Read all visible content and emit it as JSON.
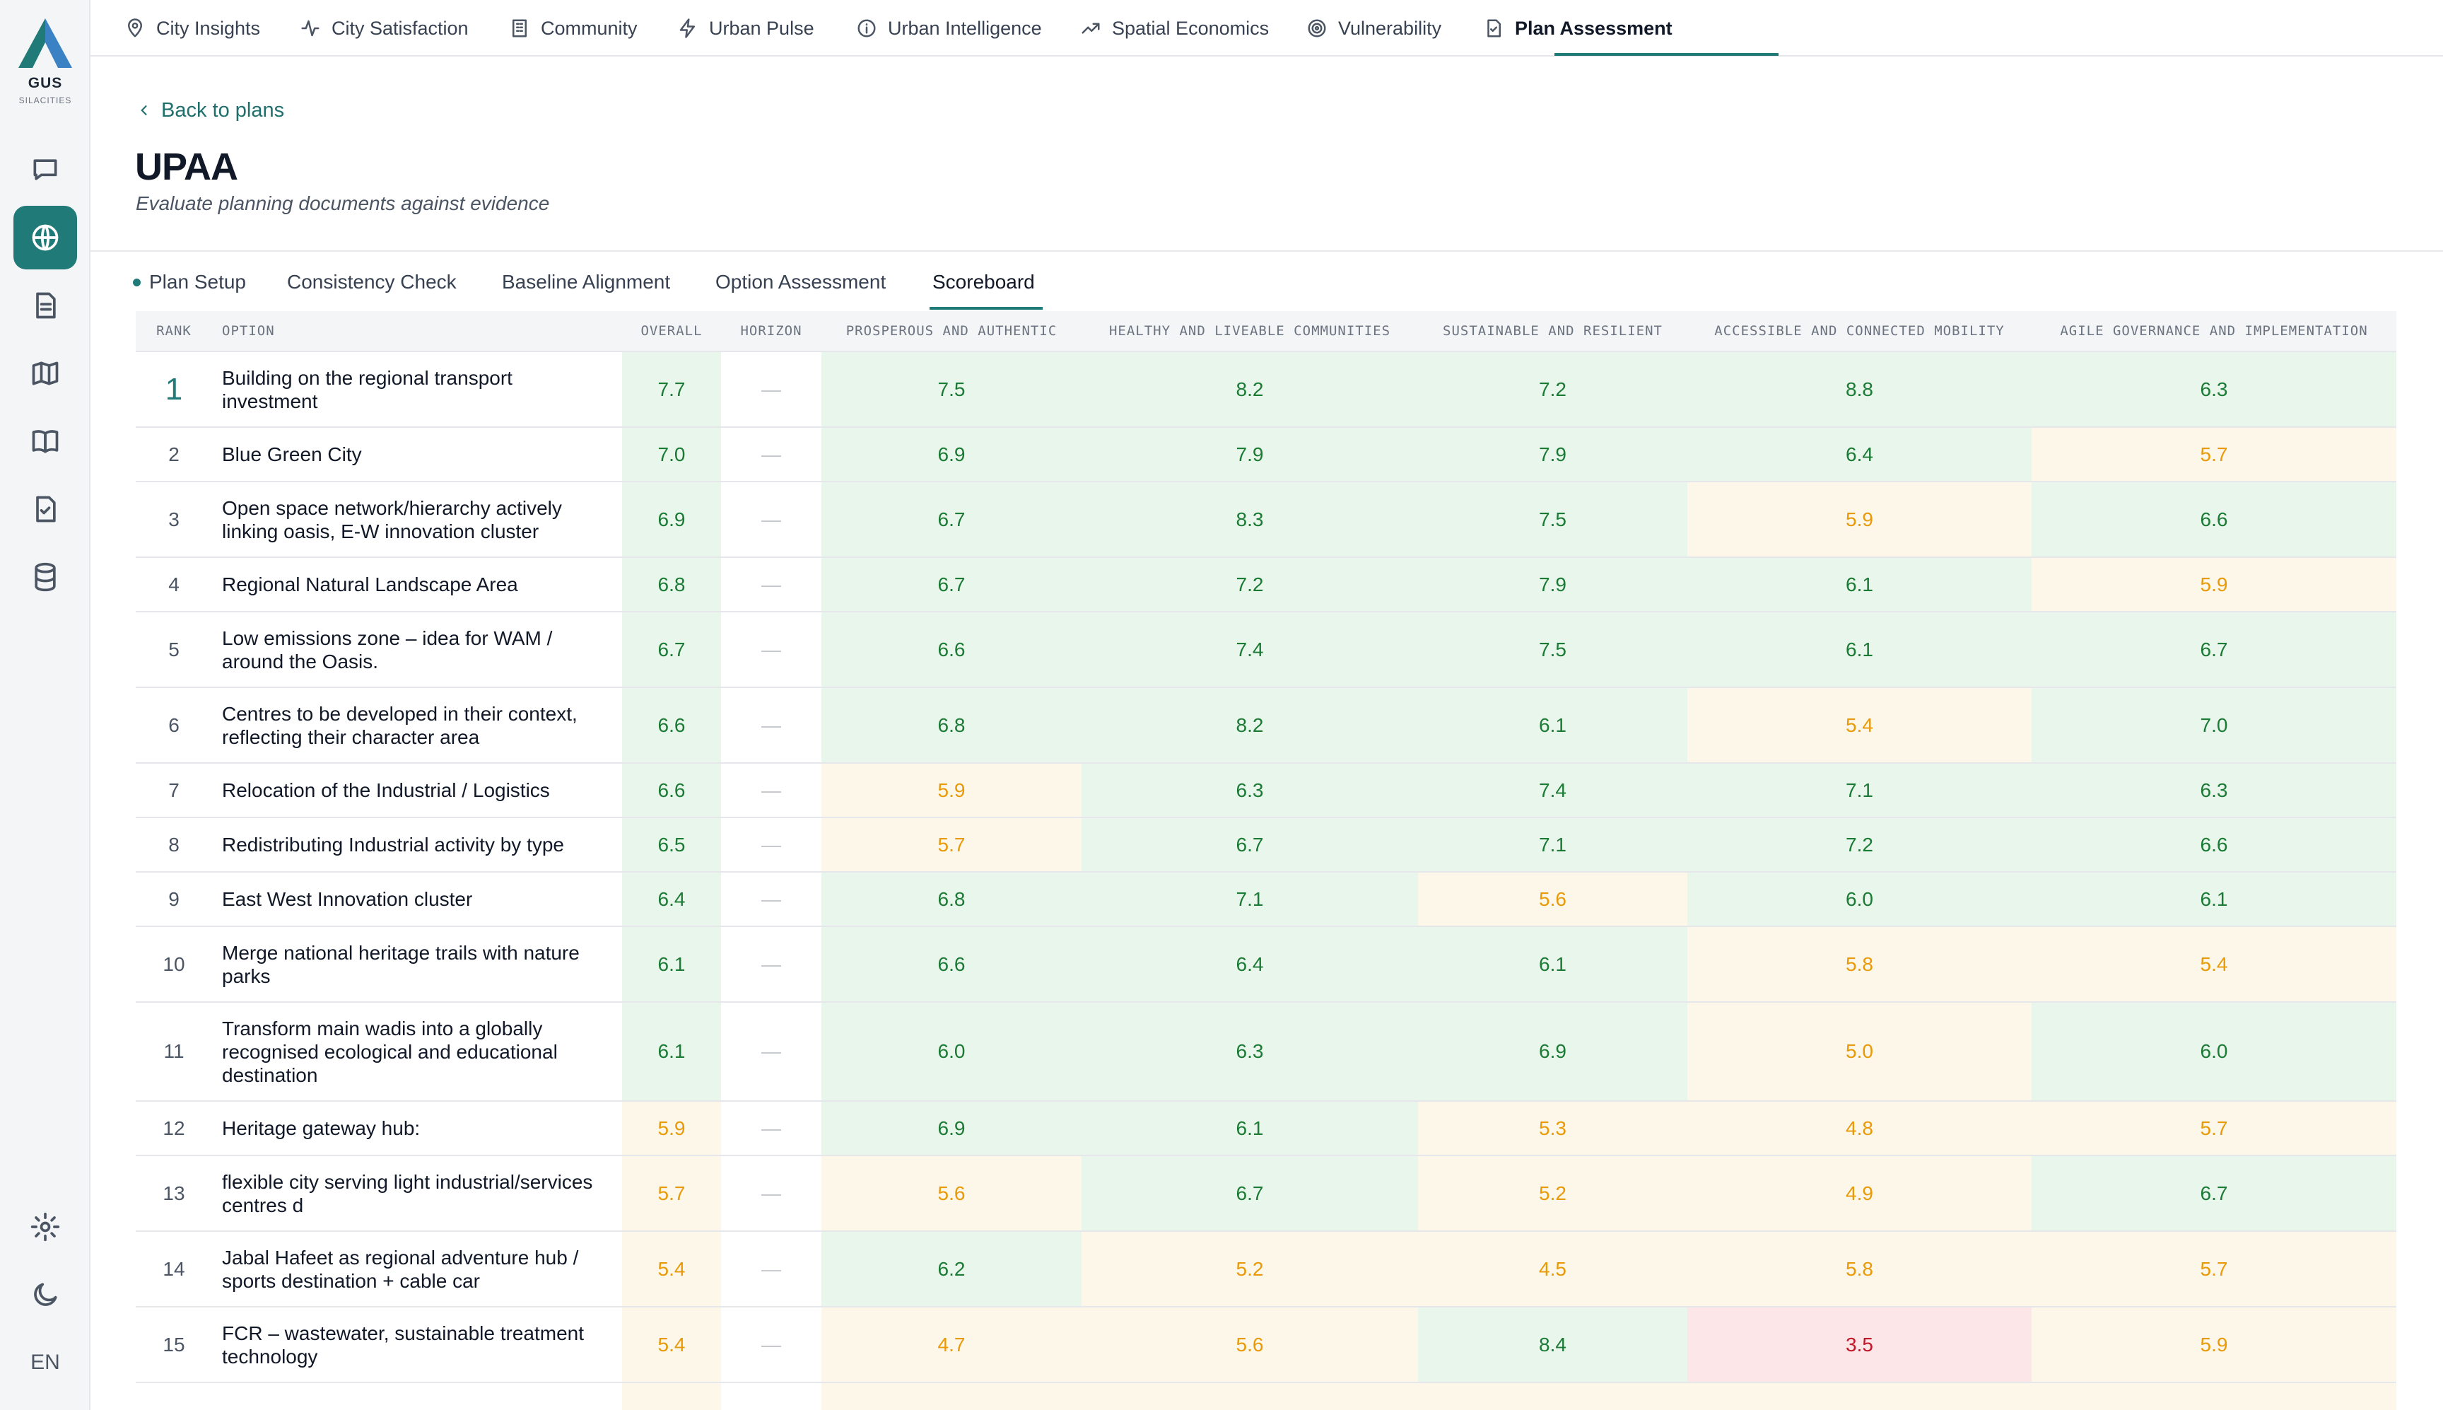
{
  "brand": {
    "name": "GUS",
    "tagline": "SILACITIES"
  },
  "rail": {
    "language": "EN"
  },
  "topnav": {
    "items": [
      {
        "label": "City Insights"
      },
      {
        "label": "City Satisfaction"
      },
      {
        "label": "Community"
      },
      {
        "label": "Urban Pulse"
      },
      {
        "label": "Urban Intelligence"
      },
      {
        "label": "Spatial Economics"
      },
      {
        "label": "Vulnerability"
      },
      {
        "label": "Plan Assessment"
      }
    ],
    "active": "Plan Assessment"
  },
  "header": {
    "back": "Back to plans",
    "title": "UPAA",
    "subtitle": "Evaluate planning documents against evidence"
  },
  "tabs": [
    {
      "label": "Plan Setup"
    },
    {
      "label": "Consistency Check"
    },
    {
      "label": "Baseline Alignment"
    },
    {
      "label": "Option Assessment"
    },
    {
      "label": "Scoreboard"
    }
  ],
  "active_tab": "Scoreboard",
  "table": {
    "columns": [
      "RANK",
      "OPTION",
      "OVERALL",
      "HORIZON",
      "PROSPEROUS AND AUTHENTIC",
      "HEALTHY AND LIVEABLE COMMUNITIES",
      "SUSTAINABLE AND RESILIENT",
      "ACCESSIBLE AND CONNECTED MOBILITY",
      "AGILE GOVERNANCE AND IMPLEMENTATION"
    ],
    "rows": [
      {
        "rank": "1",
        "option": "Building on the regional transport investment",
        "overall": "7.7",
        "horizon": "—",
        "scores": [
          "7.5",
          "8.2",
          "7.2",
          "8.8",
          "6.3"
        ]
      },
      {
        "rank": "2",
        "option": "Blue Green City",
        "overall": "7.0",
        "horizon": "—",
        "scores": [
          "6.9",
          "7.9",
          "7.9",
          "6.4",
          "5.7"
        ]
      },
      {
        "rank": "3",
        "option": "Open space network/hierarchy actively linking oasis, E-W innovation cluster",
        "overall": "6.9",
        "horizon": "—",
        "scores": [
          "6.7",
          "8.3",
          "7.5",
          "5.9",
          "6.6"
        ]
      },
      {
        "rank": "4",
        "option": "Regional Natural Landscape Area",
        "overall": "6.8",
        "horizon": "—",
        "scores": [
          "6.7",
          "7.2",
          "7.9",
          "6.1",
          "5.9"
        ]
      },
      {
        "rank": "5",
        "option": "Low emissions zone – idea for WAM / around the Oasis.",
        "overall": "6.7",
        "horizon": "—",
        "scores": [
          "6.6",
          "7.4",
          "7.5",
          "6.1",
          "6.7"
        ]
      },
      {
        "rank": "6",
        "option": "Centres to be developed in their context, reflecting their character area",
        "overall": "6.6",
        "horizon": "—",
        "scores": [
          "6.8",
          "8.2",
          "6.1",
          "5.4",
          "7.0"
        ]
      },
      {
        "rank": "7",
        "option": "Relocation of the Industrial / Logistics",
        "overall": "6.6",
        "horizon": "—",
        "scores": [
          "5.9",
          "6.3",
          "7.4",
          "7.1",
          "6.3"
        ]
      },
      {
        "rank": "8",
        "option": "Redistributing Industrial activity by type",
        "overall": "6.5",
        "horizon": "—",
        "scores": [
          "5.7",
          "6.7",
          "7.1",
          "7.2",
          "6.6"
        ]
      },
      {
        "rank": "9",
        "option": "East West Innovation cluster",
        "overall": "6.4",
        "horizon": "—",
        "scores": [
          "6.8",
          "7.1",
          "5.6",
          "6.0",
          "6.1"
        ]
      },
      {
        "rank": "10",
        "option": "Merge national heritage trails with nature parks",
        "overall": "6.1",
        "horizon": "—",
        "scores": [
          "6.6",
          "6.4",
          "6.1",
          "5.8",
          "5.4"
        ]
      },
      {
        "rank": "11",
        "option": "Transform main wadis into a globally recognised ecological and educational destination",
        "overall": "6.1",
        "horizon": "—",
        "scores": [
          "6.0",
          "6.3",
          "6.9",
          "5.0",
          "6.0"
        ]
      },
      {
        "rank": "12",
        "option": "Heritage gateway hub:",
        "overall": "5.9",
        "horizon": "—",
        "scores": [
          "6.9",
          "6.1",
          "5.3",
          "4.8",
          "5.7"
        ]
      },
      {
        "rank": "13",
        "option": "flexible city serving light industrial/services centres d",
        "overall": "5.7",
        "horizon": "—",
        "scores": [
          "5.6",
          "6.7",
          "5.2",
          "4.9",
          "6.7"
        ]
      },
      {
        "rank": "14",
        "option": "Jabal Hafeet as regional adventure hub / sports destination + cable car",
        "overall": "5.4",
        "horizon": "—",
        "scores": [
          "6.2",
          "5.2",
          "4.5",
          "5.8",
          "5.7"
        ]
      },
      {
        "rank": "15",
        "option": "FCR – wastewater, sustainable treatment technology",
        "overall": "5.4",
        "horizon": "—",
        "scores": [
          "4.7",
          "5.6",
          "8.4",
          "3.5",
          "5.9"
        ]
      }
    ]
  },
  "colors": {
    "accent": "#1f7a78",
    "good_bg": "#e9f6ec",
    "good_text": "#1b7b35",
    "mid_bg": "#fdf7ea",
    "mid_text": "#e89a08",
    "bad_bg": "#fde6e8",
    "bad_text": "#c4162a"
  }
}
